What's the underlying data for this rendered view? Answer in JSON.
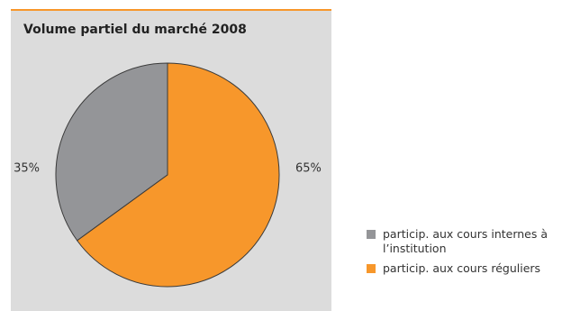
{
  "chart_data": {
    "type": "pie",
    "title": "Volume partiel du marché 2008",
    "categories": [
      "particip. aux cours internes à l’institution",
      "particip. aux cours réguliers"
    ],
    "values": [
      35,
      65
    ],
    "value_labels": [
      "35%",
      "65%"
    ],
    "colors": [
      "#949598",
      "#f7972b"
    ],
    "legend": "bottom-right"
  }
}
